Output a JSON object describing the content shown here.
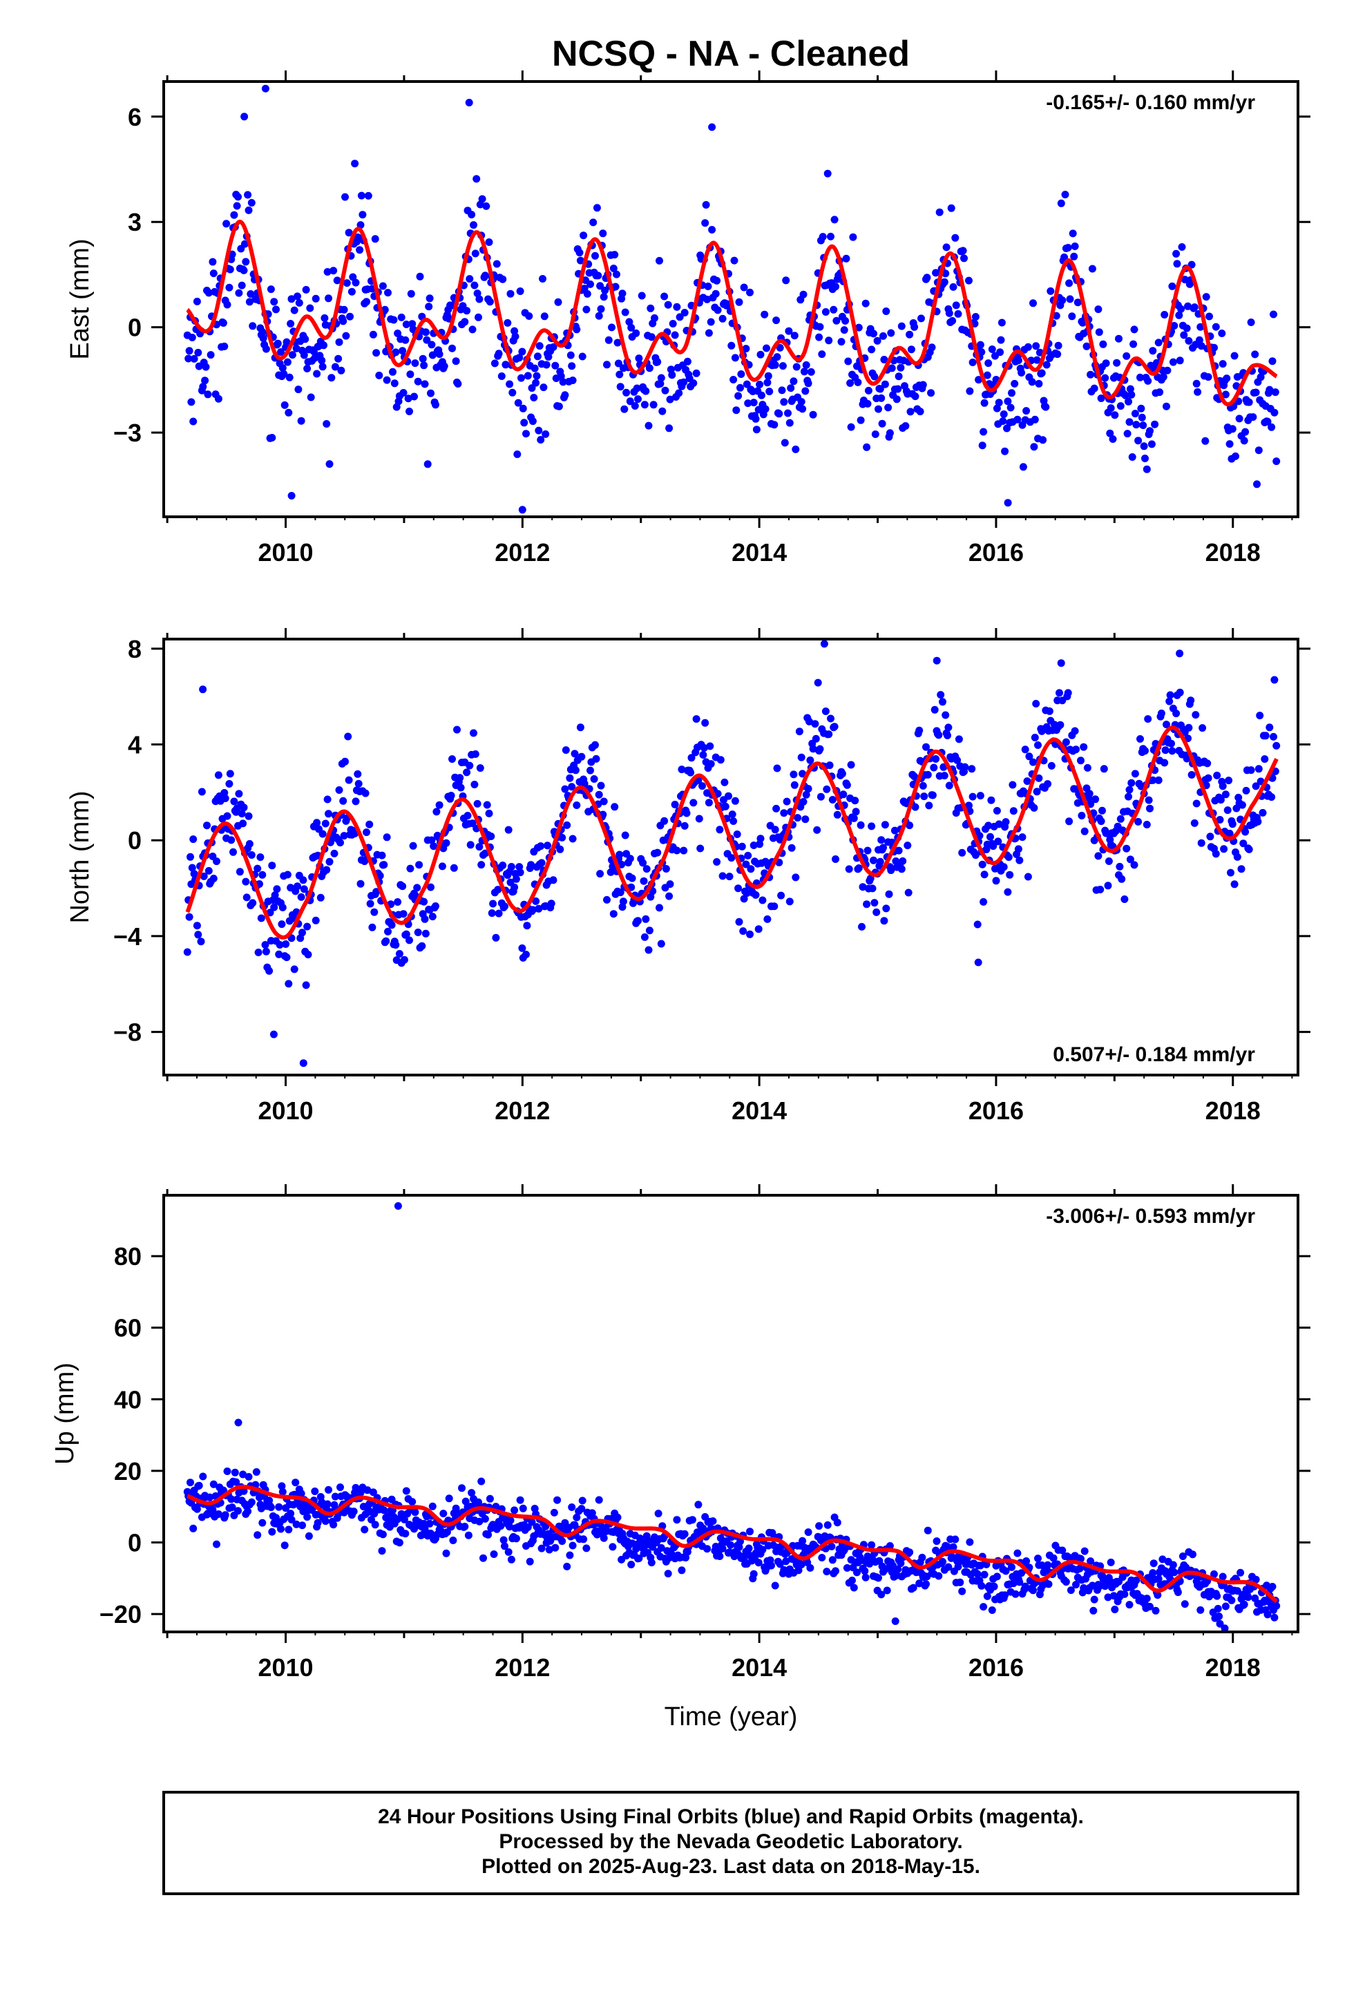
{
  "title": "NCSQ  - NA - Cleaned",
  "colors": {
    "points": "#0000ff",
    "fit": "#ff0000",
    "axes": "#000000"
  },
  "footer": {
    "line1": "24 Hour Positions Using Final Orbits (blue) and Rapid Orbits (magenta).",
    "line2": "Processed by the Nevada Geodetic Laboratory.",
    "line3": "Plotted on 2025-Aug-23. Last data on 2018-May-15."
  },
  "chart_data": [
    {
      "type": "scatter",
      "ylabel": "East (mm)",
      "xlabel": "",
      "rate": "-0.165+/- 0.160 mm/yr",
      "rate_position": "top-right",
      "xlim": [
        2008.97,
        2018.55
      ],
      "ylim": [
        -5.4,
        7.0
      ],
      "xticks": [
        "2010",
        "2012",
        "2014",
        "2016",
        "2018"
      ],
      "yticks": [
        "6",
        "3",
        "0",
        "−3"
      ],
      "ytick_values": [
        6,
        3,
        0,
        -3
      ],
      "data_range": [
        2009.17,
        2018.37
      ],
      "trend_mm_per_yr": -0.165,
      "intercept_mm": 0.4,
      "annual_amp": 1.4,
      "annual_peak": 0.62,
      "semiannual_amp": 0.6,
      "semiannual_peak": 0.62,
      "noise_sd": 1.0,
      "fit_points": [
        [
          2009.17,
          0.5
        ],
        [
          2009.37,
          0.0
        ],
        [
          2009.62,
          3.0
        ],
        [
          2009.92,
          -0.8
        ],
        [
          2010.17,
          0.3
        ],
        [
          2010.37,
          -0.2
        ],
        [
          2010.62,
          2.8
        ],
        [
          2010.92,
          -1.0
        ],
        [
          2011.17,
          0.2
        ],
        [
          2011.37,
          -0.2
        ],
        [
          2011.62,
          2.7
        ],
        [
          2011.92,
          -1.1
        ],
        [
          2012.17,
          -0.1
        ],
        [
          2012.37,
          -0.4
        ],
        [
          2012.62,
          2.5
        ],
        [
          2012.92,
          -1.2
        ],
        [
          2013.17,
          -0.2
        ],
        [
          2013.37,
          -0.6
        ],
        [
          2013.62,
          2.4
        ],
        [
          2013.92,
          -1.4
        ],
        [
          2014.17,
          -0.4
        ],
        [
          2014.37,
          -0.8
        ],
        [
          2014.62,
          2.3
        ],
        [
          2014.92,
          -1.5
        ],
        [
          2015.17,
          -0.6
        ],
        [
          2015.37,
          -0.9
        ],
        [
          2015.62,
          2.1
        ],
        [
          2015.92,
          -1.7
        ],
        [
          2016.17,
          -0.7
        ],
        [
          2016.37,
          -1.1
        ],
        [
          2016.62,
          1.9
        ],
        [
          2016.92,
          -1.9
        ],
        [
          2017.17,
          -0.9
        ],
        [
          2017.37,
          -1.2
        ],
        [
          2017.62,
          1.7
        ],
        [
          2017.92,
          -2.1
        ],
        [
          2018.17,
          -1.1
        ],
        [
          2018.37,
          -1.4
        ]
      ],
      "outliers": [
        [
          2009.83,
          6.8
        ],
        [
          2009.65,
          6.0
        ],
        [
          2010.05,
          -4.8
        ],
        [
          2012.0,
          -5.2
        ],
        [
          2011.55,
          6.4
        ],
        [
          2013.6,
          5.7
        ],
        [
          2016.1,
          -5.0
        ]
      ]
    },
    {
      "type": "scatter",
      "ylabel": "North (mm)",
      "xlabel": "",
      "rate": "0.507+/- 0.184 mm/yr",
      "rate_position": "bottom-right",
      "xlim": [
        2008.97,
        2018.55
      ],
      "ylim": [
        -9.8,
        8.4
      ],
      "xticks": [
        "2010",
        "2012",
        "2014",
        "2016",
        "2018"
      ],
      "yticks": [
        "8",
        "4",
        "0",
        "−4",
        "−8"
      ],
      "ytick_values": [
        8,
        4,
        0,
        -4,
        -8
      ],
      "data_range": [
        2009.17,
        2018.37
      ],
      "trend_mm_per_yr": 0.507,
      "intercept_mm": -1.9,
      "annual_amp": 2.5,
      "annual_peak": 0.5,
      "semiannual_amp": 0.3,
      "semiannual_peak": 0.5,
      "noise_sd": 1.2,
      "fit_points": [
        [
          2009.17,
          -3.0
        ],
        [
          2009.5,
          0.7
        ],
        [
          2009.92,
          -3.9
        ],
        [
          2010.17,
          -2.6
        ],
        [
          2010.5,
          1.2
        ],
        [
          2010.92,
          -3.3
        ],
        [
          2011.17,
          -2.0
        ],
        [
          2011.5,
          1.7
        ],
        [
          2011.92,
          -2.8
        ],
        [
          2012.17,
          -1.5
        ],
        [
          2012.5,
          2.2
        ],
        [
          2012.92,
          -2.3
        ],
        [
          2013.17,
          -1.0
        ],
        [
          2013.5,
          2.7
        ],
        [
          2013.92,
          -1.8
        ],
        [
          2014.17,
          -0.5
        ],
        [
          2014.5,
          3.2
        ],
        [
          2014.92,
          -1.3
        ],
        [
          2015.17,
          0.0
        ],
        [
          2015.5,
          3.7
        ],
        [
          2015.92,
          -0.8
        ],
        [
          2016.17,
          0.5
        ],
        [
          2016.5,
          4.2
        ],
        [
          2016.92,
          -0.3
        ],
        [
          2017.17,
          1.0
        ],
        [
          2017.5,
          4.7
        ],
        [
          2017.92,
          0.2
        ],
        [
          2018.17,
          1.5
        ],
        [
          2018.37,
          3.4
        ]
      ],
      "outliers": [
        [
          2009.3,
          6.3
        ],
        [
          2010.15,
          -9.3
        ],
        [
          2009.9,
          -8.1
        ],
        [
          2014.55,
          8.2
        ],
        [
          2015.5,
          7.5
        ],
        [
          2016.55,
          7.4
        ],
        [
          2017.55,
          7.8
        ],
        [
          2015.85,
          -5.1
        ]
      ]
    },
    {
      "type": "scatter",
      "ylabel": "Up (mm)",
      "xlabel": "Time (year)",
      "rate": "-3.006+/- 0.593 mm/yr",
      "rate_position": "top-right",
      "xlim": [
        2008.97,
        2018.55
      ],
      "ylim": [
        -25,
        97
      ],
      "xticks": [
        "2010",
        "2012",
        "2014",
        "2016",
        "2018"
      ],
      "yticks": [
        "80",
        "60",
        "40",
        "20",
        "0",
        "−20"
      ],
      "ytick_values": [
        80,
        60,
        40,
        20,
        0,
        -20
      ],
      "data_range": [
        2009.17,
        2018.37
      ],
      "trend_mm_per_yr": -3.006,
      "intercept_mm": 12.5,
      "annual_amp": 2.0,
      "annual_peak": 0.6,
      "semiannual_amp": 1.0,
      "semiannual_peak": 0.6,
      "noise_sd": 3.5,
      "fit_points": [
        [
          2009.17,
          13
        ],
        [
          2009.37,
          11
        ],
        [
          2009.62,
          15.5
        ],
        [
          2009.92,
          13
        ],
        [
          2010.17,
          12
        ],
        [
          2010.37,
          8
        ],
        [
          2010.62,
          12.5
        ],
        [
          2010.92,
          10
        ],
        [
          2011.17,
          9.5
        ],
        [
          2011.37,
          5
        ],
        [
          2011.62,
          9.5
        ],
        [
          2011.92,
          7.5
        ],
        [
          2012.17,
          6.5
        ],
        [
          2012.37,
          2
        ],
        [
          2012.62,
          6
        ],
        [
          2012.92,
          4
        ],
        [
          2013.17,
          3.5
        ],
        [
          2013.37,
          -1
        ],
        [
          2013.62,
          3
        ],
        [
          2013.92,
          1
        ],
        [
          2014.17,
          0.5
        ],
        [
          2014.37,
          -4.5
        ],
        [
          2014.62,
          0.5
        ],
        [
          2014.92,
          -2
        ],
        [
          2015.17,
          -2.5
        ],
        [
          2015.37,
          -7
        ],
        [
          2015.62,
          -2.5
        ],
        [
          2015.92,
          -5
        ],
        [
          2016.17,
          -5.5
        ],
        [
          2016.37,
          -10.5
        ],
        [
          2016.62,
          -5.5
        ],
        [
          2016.92,
          -8
        ],
        [
          2017.17,
          -8.5
        ],
        [
          2017.37,
          -13.5
        ],
        [
          2017.62,
          -8.5
        ],
        [
          2017.92,
          -11
        ],
        [
          2018.17,
          -11.5
        ],
        [
          2018.37,
          -16.5
        ]
      ],
      "outliers": [
        [
          2010.95,
          94
        ],
        [
          2009.6,
          33.5
        ],
        [
          2015.15,
          -22
        ]
      ]
    }
  ]
}
